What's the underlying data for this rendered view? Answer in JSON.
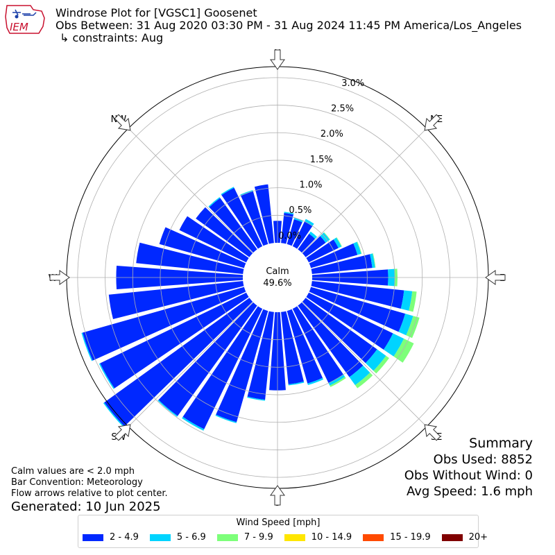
{
  "header": {
    "title": "Windrose Plot for [VGSC1] Goosenet",
    "obs_between": "Obs Between: 31 Aug 2020 03:30 PM - 31 Aug 2024 11:45 PM America/Los_Angeles",
    "constraints": "↳ constraints: Aug"
  },
  "logo": {
    "text": "IEM"
  },
  "notes": {
    "calm_note": "Calm values are < 2.0 mph",
    "bar_convention": "Bar Convention: Meteorology",
    "flow_note": "Flow arrows relative to plot center.",
    "generated": "Generated: 10 Jun 2025"
  },
  "summary": {
    "title": "Summary",
    "obs_used": "Obs Used: 8852",
    "obs_without_wind": "Obs Without Wind: 0",
    "avg_speed": "Avg Speed: 1.6 mph"
  },
  "chart_data": {
    "type": "windrose",
    "calm_label": "Calm",
    "calm_value": "49.6%",
    "radial_ticks": [
      "0.0%",
      "0.5%",
      "1.0%",
      "1.5%",
      "2.0%",
      "2.5%",
      "3.0%"
    ],
    "radial_tick_values": [
      0,
      0.5,
      1.0,
      1.5,
      2.0,
      2.5,
      3.0
    ],
    "radial_max": 3.2,
    "directions": [
      "N",
      "NE",
      "E",
      "SE",
      "S",
      "SW",
      "W",
      "NW"
    ],
    "direction_angles": [
      0,
      45,
      90,
      135,
      180,
      225,
      270,
      315
    ],
    "legend_title": "Wind Speed [mph]",
    "speed_bins": [
      {
        "label": "2 - 4.9",
        "color": "#0028ff"
      },
      {
        "label": "5 - 6.9",
        "color": "#00d4ff"
      },
      {
        "label": "7 - 9.9",
        "color": "#7dff7a"
      },
      {
        "label": "10 - 14.9",
        "color": "#ffe600"
      },
      {
        "label": "15 - 19.9",
        "color": "#ff4a00"
      },
      {
        "label": "20+",
        "color": "#800000"
      }
    ],
    "sector_width_deg": 10,
    "sectors": [
      {
        "dir": 0,
        "values": [
          0.4,
          0.0,
          0.0,
          0,
          0,
          0
        ]
      },
      {
        "dir": 10,
        "values": [
          0.55,
          0.02,
          0.0,
          0,
          0,
          0
        ]
      },
      {
        "dir": 20,
        "values": [
          0.47,
          0.03,
          0.0,
          0,
          0,
          0
        ]
      },
      {
        "dir": 30,
        "values": [
          0.5,
          0.05,
          0.0,
          0,
          0,
          0
        ]
      },
      {
        "dir": 40,
        "values": [
          0.35,
          0.05,
          0.0,
          0,
          0,
          0
        ]
      },
      {
        "dir": 50,
        "values": [
          0.45,
          0.09,
          0.01,
          0,
          0,
          0
        ]
      },
      {
        "dir": 60,
        "values": [
          0.6,
          0.06,
          0.01,
          0,
          0,
          0
        ]
      },
      {
        "dir": 70,
        "values": [
          0.88,
          0.07,
          0.01,
          0,
          0,
          0
        ]
      },
      {
        "dir": 80,
        "values": [
          1.1,
          0.05,
          0.01,
          0,
          0,
          0
        ]
      },
      {
        "dir": 90,
        "values": [
          1.38,
          0.12,
          0.05,
          0,
          0,
          0
        ]
      },
      {
        "dir": 100,
        "values": [
          1.68,
          0.15,
          0.08,
          0,
          0,
          0
        ]
      },
      {
        "dir": 110,
        "values": [
          1.78,
          0.15,
          0.12,
          0,
          0,
          0
        ]
      },
      {
        "dir": 120,
        "values": [
          1.7,
          0.22,
          0.2,
          0,
          0,
          0
        ]
      },
      {
        "dir": 130,
        "values": [
          1.6,
          0.2,
          0.07,
          0,
          0,
          0
        ]
      },
      {
        "dir": 140,
        "values": [
          1.6,
          0.18,
          0.07,
          0,
          0,
          0
        ]
      },
      {
        "dir": 150,
        "values": [
          1.5,
          0.05,
          0.03,
          0,
          0,
          0
        ]
      },
      {
        "dir": 160,
        "values": [
          1.37,
          0.03,
          0.0,
          0,
          0,
          0
        ]
      },
      {
        "dir": 170,
        "values": [
          1.32,
          0.02,
          0.0,
          0,
          0,
          0
        ]
      },
      {
        "dir": 180,
        "values": [
          1.42,
          0.0,
          0.0,
          0,
          0,
          0
        ]
      },
      {
        "dir": 190,
        "values": [
          1.6,
          0.02,
          0.0,
          0,
          0,
          0
        ]
      },
      {
        "dir": 200,
        "values": [
          2.1,
          0.02,
          0.0,
          0,
          0,
          0
        ]
      },
      {
        "dir": 210,
        "values": [
          2.43,
          0.03,
          0.0,
          0,
          0,
          0
        ]
      },
      {
        "dir": 220,
        "values": [
          2.47,
          0.02,
          0.0,
          0,
          0,
          0
        ]
      },
      {
        "dir": 230,
        "values": [
          3.25,
          0.02,
          0.0,
          0,
          0,
          0
        ]
      },
      {
        "dir": 240,
        "values": [
          2.95,
          0.02,
          0.0,
          0,
          0,
          0
        ]
      },
      {
        "dir": 250,
        "values": [
          3.05,
          0.02,
          0.0,
          0,
          0,
          0
        ]
      },
      {
        "dir": 260,
        "values": [
          2.45,
          0.0,
          0.0,
          0,
          0,
          0
        ]
      },
      {
        "dir": 270,
        "values": [
          2.3,
          0.0,
          0.0,
          0,
          0,
          0
        ]
      },
      {
        "dir": 280,
        "values": [
          1.95,
          0.0,
          0.0,
          0,
          0,
          0
        ]
      },
      {
        "dir": 290,
        "values": [
          1.6,
          0.0,
          0.0,
          0,
          0,
          0
        ]
      },
      {
        "dir": 300,
        "values": [
          1.35,
          0.0,
          0.0,
          0,
          0,
          0
        ]
      },
      {
        "dir": 310,
        "values": [
          1.2,
          0.0,
          0.0,
          0,
          0,
          0
        ]
      },
      {
        "dir": 320,
        "values": [
          1.15,
          0.02,
          0.0,
          0,
          0,
          0
        ]
      },
      {
        "dir": 330,
        "values": [
          1.18,
          0.02,
          0.0,
          0,
          0,
          0
        ]
      },
      {
        "dir": 340,
        "values": [
          1.0,
          0.02,
          0.0,
          0,
          0,
          0
        ]
      },
      {
        "dir": 350,
        "values": [
          1.07,
          0.0,
          0.0,
          0,
          0,
          0
        ]
      }
    ]
  }
}
